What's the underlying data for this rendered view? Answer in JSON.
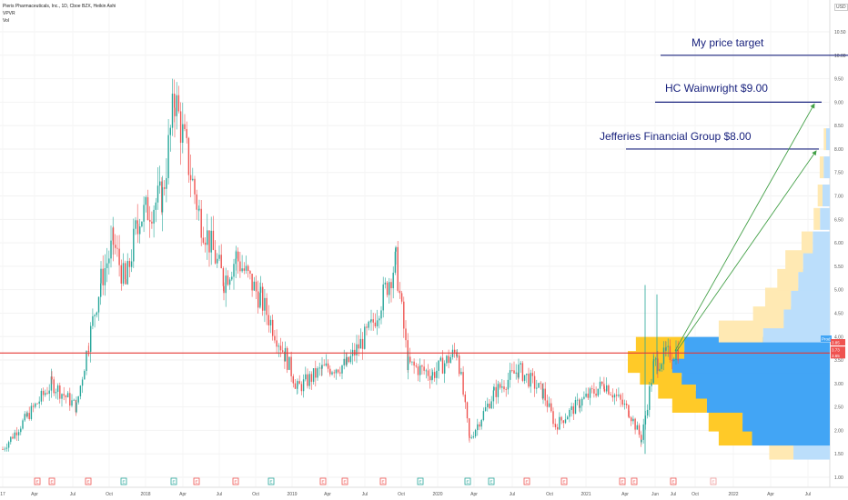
{
  "header": {
    "title_line": "Pieris Pharmaceuticals, Inc., 1D, Cboe BZX, Heikin Ashi",
    "indicator_1": "VPVR",
    "indicator_2": "Vol",
    "currency": "USD"
  },
  "annotations": {
    "price_target": "My price target",
    "hc_wainwright": "HC Wainwright $9.00",
    "jefferies": "Jefferies Financial Group   $8.00"
  },
  "price_labels": {
    "prod": "Prod",
    "upper": "3.85",
    "mid": "3.73",
    "lower": "3.65"
  },
  "colors": {
    "up": "#26a69a",
    "down": "#ef5350",
    "hline": "#e53935",
    "target_line": "#1a237e",
    "arrow": "#43a047",
    "vp_blue": "#42a5f5",
    "vp_blue_light": "#bbdefb",
    "vp_yellow": "#ffca28",
    "vp_yellow_light": "#ffe9b3"
  },
  "chart_data": {
    "type": "candlestick",
    "y_axis": {
      "ticks": [
        "1.00",
        "1.50",
        "2.00",
        "2.50",
        "3.00",
        "3.50",
        "4.00",
        "4.50",
        "5.00",
        "5.50",
        "6.00",
        "6.50",
        "7.00",
        "7.50",
        "8.00",
        "8.50",
        "9.00",
        "9.50",
        "10.00",
        "10.50"
      ],
      "range": [
        0.85,
        10.65
      ]
    },
    "x_axis": {
      "ticks": [
        "17",
        "Apr",
        "Jul",
        "Oct",
        "2018",
        "Apr",
        "Jul",
        "Oct",
        "2019",
        "Apr",
        "Jul",
        "Oct",
        "2020",
        "Apr",
        "Jul",
        "Oct",
        "2021",
        "Apr",
        "Jun",
        "Jul",
        "Oct",
        "2022",
        "Apr",
        "Jul"
      ]
    },
    "key_points": [
      {
        "x": "2017-01",
        "y": 1.6
      },
      {
        "x": "2017-03",
        "y": 2.3
      },
      {
        "x": "2017-05",
        "y": 3.0
      },
      {
        "x": "2017-07",
        "y": 2.5
      },
      {
        "x": "2017-08",
        "y": 3.9
      },
      {
        "x": "2017-09",
        "y": 5.2
      },
      {
        "x": "2017-10",
        "y": 6.0
      },
      {
        "x": "2017-11",
        "y": 5.1
      },
      {
        "x": "2017-12",
        "y": 6.5
      },
      {
        "x": "2018-02",
        "y": 7.0
      },
      {
        "x": "2018-03",
        "y": 9.1
      },
      {
        "x": "2018-05",
        "y": 6.6
      },
      {
        "x": "2018-07",
        "y": 5.2
      },
      {
        "x": "2018-08",
        "y": 5.7
      },
      {
        "x": "2018-10",
        "y": 4.8
      },
      {
        "x": "2018-12",
        "y": 3.6
      },
      {
        "x": "2019-01",
        "y": 2.9
      },
      {
        "x": "2019-03",
        "y": 3.3
      },
      {
        "x": "2019-05",
        "y": 3.4
      },
      {
        "x": "2019-07",
        "y": 4.2
      },
      {
        "x": "2019-09",
        "y": 5.6
      },
      {
        "x": "2019-10",
        "y": 3.4
      },
      {
        "x": "2019-12",
        "y": 3.2
      },
      {
        "x": "2020-02",
        "y": 3.7
      },
      {
        "x": "2020-03",
        "y": 1.8
      },
      {
        "x": "2020-05",
        "y": 2.8
      },
      {
        "x": "2020-07",
        "y": 3.3
      },
      {
        "x": "2020-09",
        "y": 2.8
      },
      {
        "x": "2020-10",
        "y": 2.1
      },
      {
        "x": "2020-12",
        "y": 2.6
      },
      {
        "x": "2021-02",
        "y": 3.0
      },
      {
        "x": "2021-04",
        "y": 2.4
      },
      {
        "x": "2021-05",
        "y": 1.8
      },
      {
        "x": "2021-06",
        "y": 3.4
      },
      {
        "x": "2021-07",
        "y": 3.6
      },
      {
        "x": "2021-08",
        "y": 3.7
      }
    ],
    "horizontal_line": 3.65,
    "target_lines": [
      {
        "label": "My price target",
        "y": 10.0
      },
      {
        "label": "HC Wainwright $9.00",
        "y": 9.0
      },
      {
        "label": "Jefferies Financial Group   $8.00",
        "y": 8.0
      }
    ],
    "volume_profile": [
      {
        "price": 1.6,
        "value": 0.3,
        "up": 0.6
      },
      {
        "price": 1.9,
        "value": 0.55,
        "up": 0.7
      },
      {
        "price": 2.2,
        "value": 0.6,
        "up": 0.72
      },
      {
        "price": 2.6,
        "value": 0.78,
        "up": 0.78
      },
      {
        "price": 2.9,
        "value": 0.85,
        "up": 0.78
      },
      {
        "price": 3.2,
        "value": 0.94,
        "up": 0.78
      },
      {
        "price": 3.45,
        "value": 1.0,
        "up": 0.78
      },
      {
        "price": 3.75,
        "value": 0.96,
        "up": 0.75
      },
      {
        "price": 4.1,
        "value": 0.55,
        "up": 0.6
      },
      {
        "price": 4.4,
        "value": 0.38,
        "up": 0.6
      },
      {
        "price": 4.8,
        "value": 0.32,
        "up": 0.6
      },
      {
        "price": 5.2,
        "value": 0.26,
        "up": 0.6
      },
      {
        "price": 5.6,
        "value": 0.22,
        "up": 0.6
      },
      {
        "price": 6.0,
        "value": 0.14,
        "up": 0.6
      },
      {
        "price": 6.5,
        "value": 0.08,
        "up": 0.6
      },
      {
        "price": 7.0,
        "value": 0.06,
        "up": 0.6
      },
      {
        "price": 7.6,
        "value": 0.05,
        "up": 0.6
      },
      {
        "price": 8.2,
        "value": 0.03,
        "up": 0.6
      }
    ]
  }
}
